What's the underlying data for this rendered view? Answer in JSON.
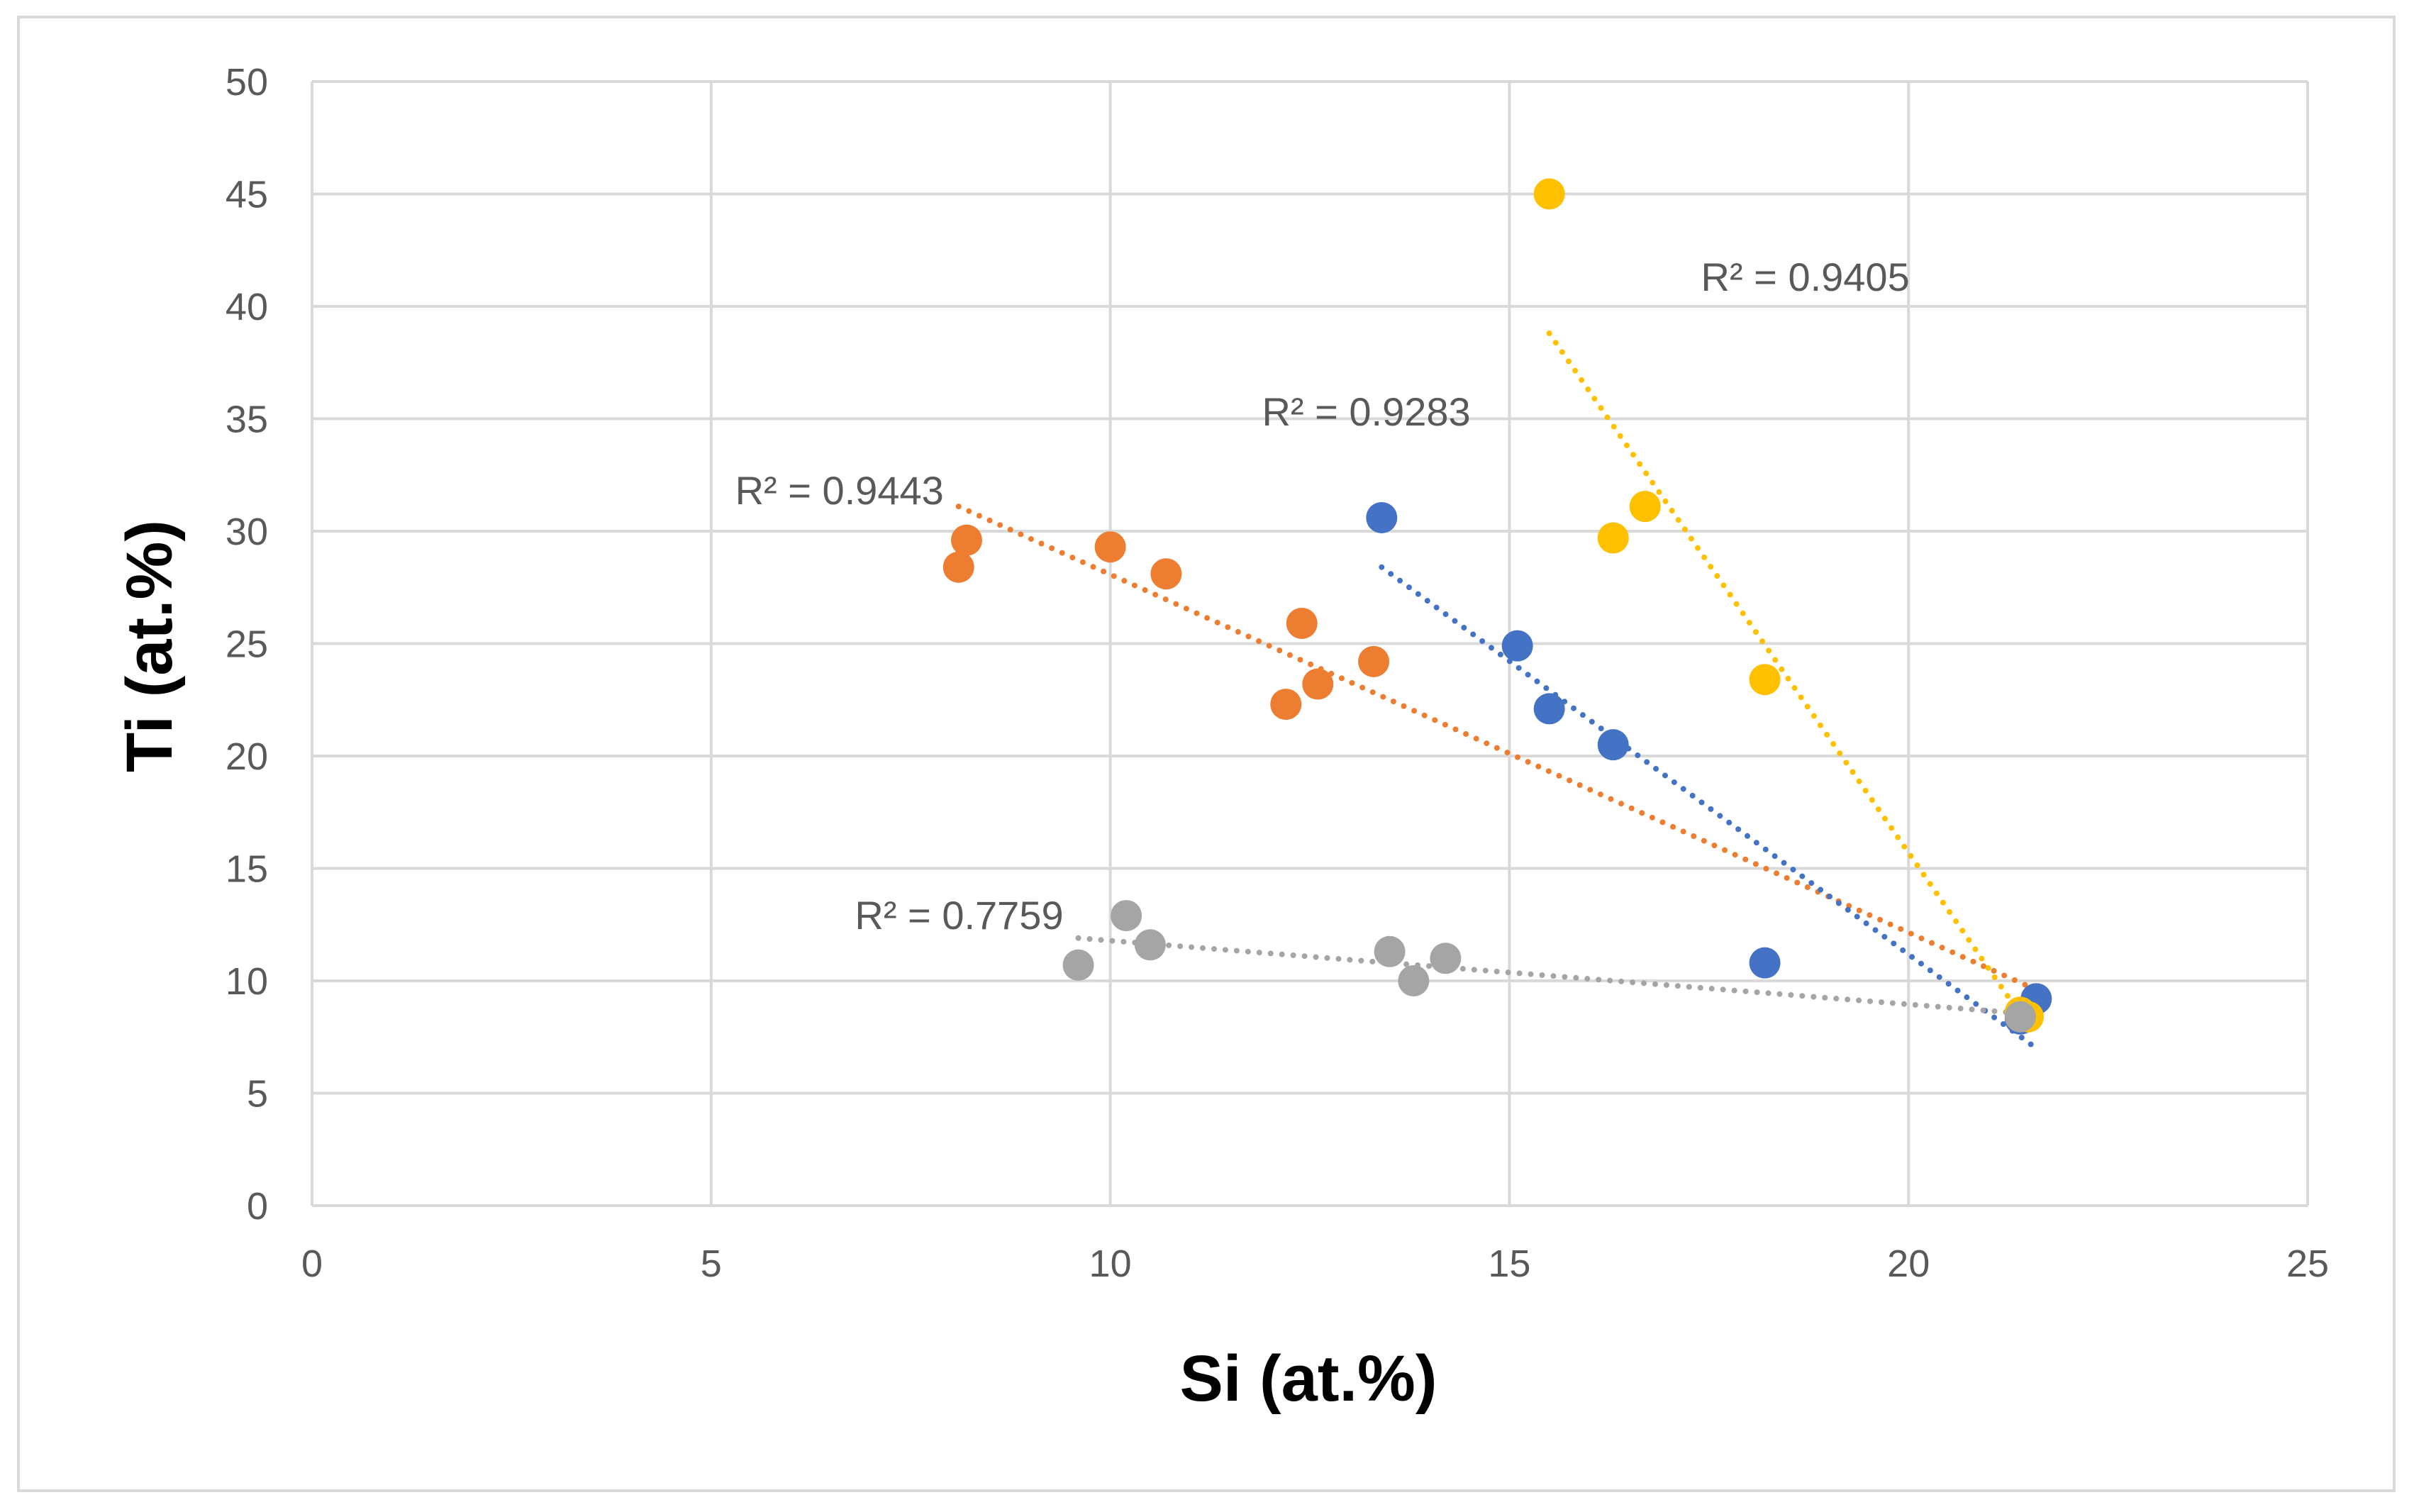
{
  "chart_data": {
    "type": "scatter",
    "title": "",
    "xlabel": "Si (at.%)",
    "ylabel": "Ti (at.%)",
    "xlim": [
      0,
      25
    ],
    "ylim": [
      0,
      50
    ],
    "xticks": [
      0,
      5,
      10,
      15,
      20,
      25
    ],
    "yticks": [
      0,
      5,
      10,
      15,
      20,
      25,
      30,
      35,
      40,
      45,
      50
    ],
    "grid": true,
    "legend": "none",
    "series": [
      {
        "name": "orange",
        "color": "#ED7D31",
        "points": [
          [
            8.1,
            28.4
          ],
          [
            8.2,
            29.6
          ],
          [
            10.0,
            29.3
          ],
          [
            10.7,
            28.1
          ],
          [
            12.2,
            22.3
          ],
          [
            12.4,
            25.9
          ],
          [
            12.6,
            23.2
          ],
          [
            13.3,
            24.2
          ],
          [
            21.4,
            8.6
          ],
          [
            21.6,
            9.2
          ]
        ],
        "trendline": {
          "x": [
            8.1,
            21.6
          ],
          "y": [
            31.1,
            9.6
          ]
        },
        "r2_label": "R² = 0.9443"
      },
      {
        "name": "blue",
        "color": "#4472C4",
        "points": [
          [
            13.4,
            30.6
          ],
          [
            15.1,
            24.9
          ],
          [
            15.5,
            22.1
          ],
          [
            16.3,
            20.5
          ],
          [
            18.2,
            10.8
          ],
          [
            21.4,
            8.3
          ],
          [
            21.6,
            9.2
          ]
        ],
        "trendline": {
          "x": [
            13.4,
            21.6
          ],
          "y": [
            28.4,
            7.0
          ]
        },
        "r2_label": "R² = 0.9283"
      },
      {
        "name": "yellow",
        "color": "#FFC000",
        "points": [
          [
            15.5,
            45.0
          ],
          [
            16.3,
            29.7
          ],
          [
            16.7,
            31.1
          ],
          [
            18.2,
            23.4
          ],
          [
            21.4,
            8.6
          ],
          [
            21.5,
            8.4
          ]
        ],
        "trendline": {
          "x": [
            15.5,
            21.5
          ],
          "y": [
            38.8,
            8.0
          ]
        },
        "r2_label": "R² = 0.9405"
      },
      {
        "name": "gray",
        "color": "#A5A5A5",
        "points": [
          [
            9.6,
            10.7
          ],
          [
            10.2,
            12.9
          ],
          [
            10.5,
            11.6
          ],
          [
            13.5,
            11.3
          ],
          [
            13.8,
            10.0
          ],
          [
            14.2,
            11.0
          ],
          [
            21.4,
            8.4
          ]
        ],
        "trendline": {
          "x": [
            9.6,
            21.6
          ],
          "y": [
            11.9,
            8.5
          ]
        },
        "r2_label": "R² = 0.7759"
      }
    ],
    "annotations": [
      {
        "text": "R² = 0.9443",
        "series": "orange",
        "x": 5.3,
        "y": 31.2
      },
      {
        "text": "R² = 0.9283",
        "series": "blue",
        "x": 11.9,
        "y": 34.7
      },
      {
        "text": "R² = 0.9405",
        "series": "yellow",
        "x": 17.4,
        "y": 40.7
      },
      {
        "text": "R² = 0.7759",
        "series": "gray",
        "x": 6.8,
        "y": 12.3
      }
    ]
  }
}
